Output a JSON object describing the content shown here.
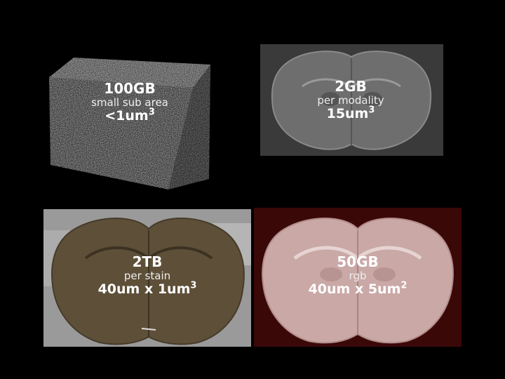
{
  "panels": [
    {
      "size": "100GB",
      "desc": "small sub area",
      "res": "<1um",
      "exp": "3"
    },
    {
      "size": "2GB",
      "desc": "per modality",
      "res": "15um",
      "exp": "3"
    },
    {
      "size": "2TB",
      "desc": "per stain",
      "res": "40um x 1um",
      "exp": "3"
    },
    {
      "size": "50GB",
      "desc": "rgb",
      "res": "40um x 5um",
      "exp": "2"
    }
  ]
}
